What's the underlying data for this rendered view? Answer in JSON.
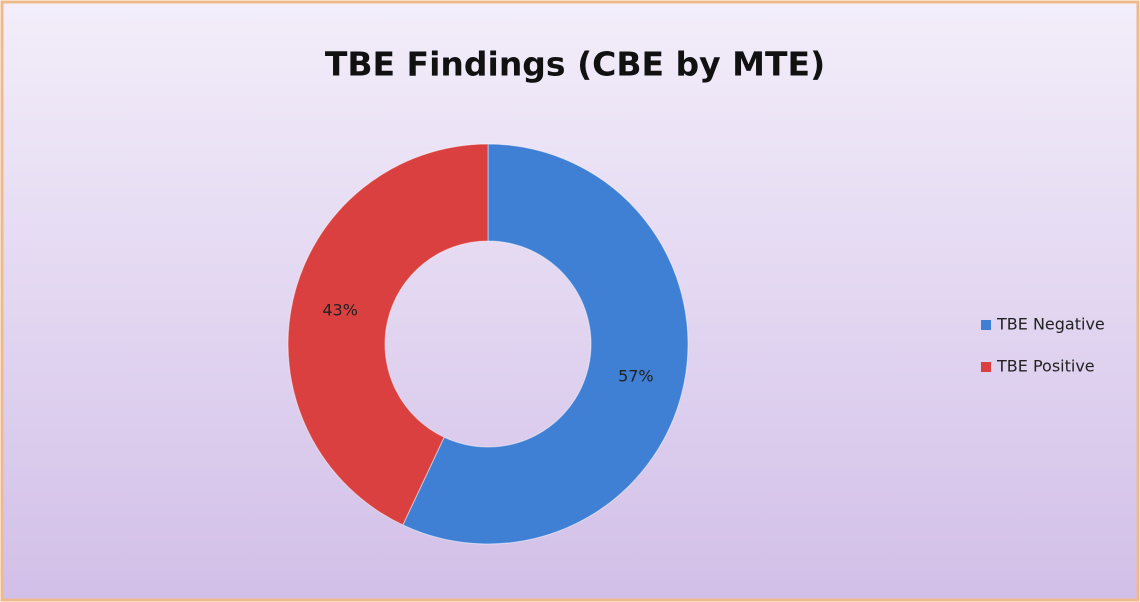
{
  "chart_data": {
    "type": "donut",
    "title": "TBE Findings (CBE by MTE)",
    "categories": [
      "TBE Negative",
      "TBE Positive"
    ],
    "values": [
      57,
      43
    ],
    "value_labels": [
      "57%",
      "43%"
    ],
    "colors": [
      "#3f7fd4",
      "#d9403f"
    ],
    "legend": "right"
  }
}
